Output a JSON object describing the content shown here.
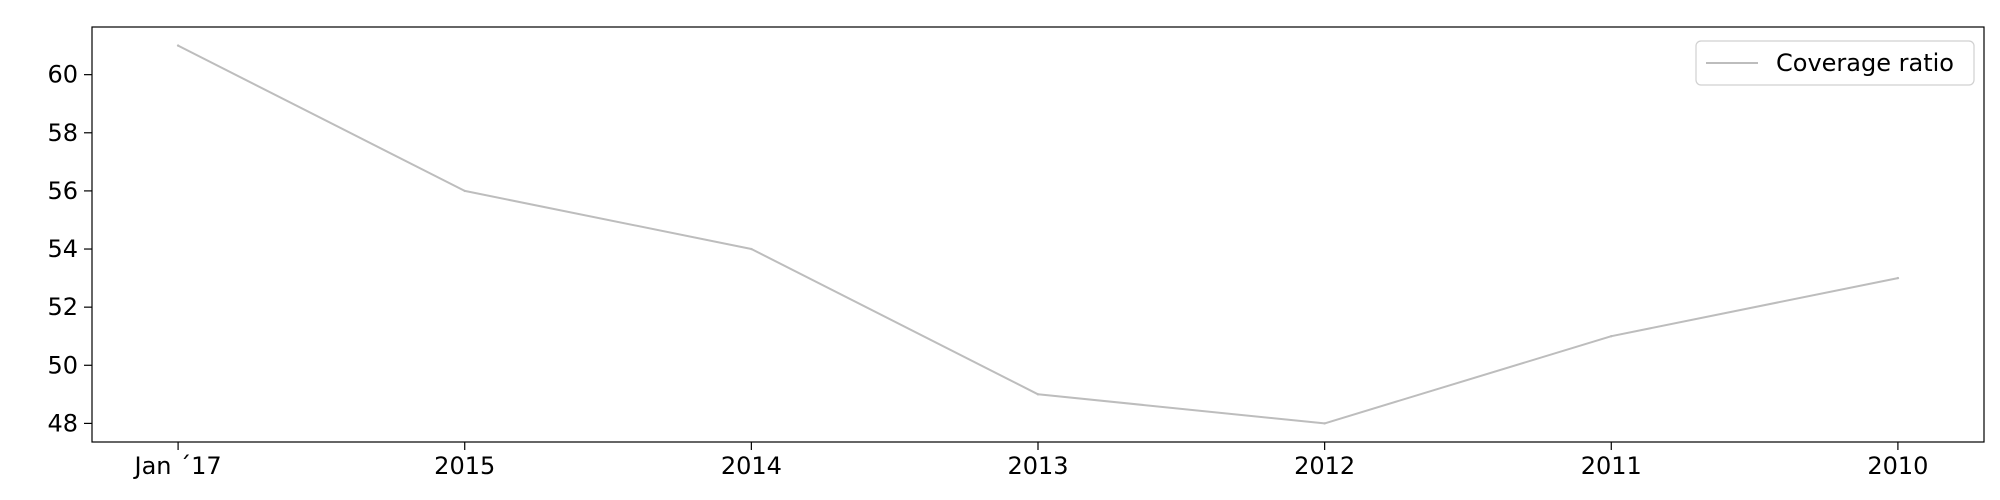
{
  "chart_data": {
    "type": "line",
    "categories": [
      "Jan ´17",
      "2015",
      "2014",
      "2013",
      "2012",
      "2011",
      "2010"
    ],
    "series": [
      {
        "name": "Coverage ratio",
        "values": [
          61,
          56,
          54,
          49,
          48,
          51,
          53
        ],
        "color": "#bdbdbd"
      }
    ],
    "title": "",
    "xlabel": "",
    "ylabel": "",
    "ylim": [
      47.36,
      61.64
    ],
    "yticks": [
      48,
      50,
      52,
      54,
      56,
      58,
      60
    ],
    "grid": false,
    "legend": "top-right"
  }
}
